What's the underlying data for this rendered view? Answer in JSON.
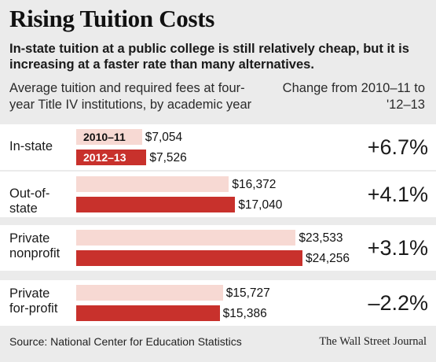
{
  "title": "Rising Tuition Costs",
  "subtitle": "In-state tuition at a public college is still relatively cheap, but it is increasing at a faster rate than many alternatives.",
  "description": "Average tuition and required fees at four-year Title IV institutions, by academic year",
  "change_header": "Change from 2010–11 to '12–13",
  "source": "Source: National Center for Education Statistics",
  "credit": "The Wall Street Journal",
  "colors": {
    "series_2010": "#f7d9d3",
    "series_2012": "#c8312c",
    "background": "#ebebeb",
    "row_background": "#ffffff"
  },
  "chart_data": {
    "type": "bar",
    "orientation": "horizontal",
    "title": "Rising Tuition Costs",
    "categories": [
      "In-state",
      "Out-of-state",
      "Private nonprofit",
      "Private for-profit"
    ],
    "series": [
      {
        "name": "2010–11",
        "values": [
          7054,
          16372,
          23533,
          15727
        ],
        "labels": [
          "$7,054",
          "$16,372",
          "$23,533",
          "$15,727"
        ]
      },
      {
        "name": "2012–13",
        "values": [
          7526,
          17040,
          24256,
          15386
        ],
        "labels": [
          "$7,526",
          "$17,040",
          "$24,256",
          "$15,386"
        ]
      }
    ],
    "changes": [
      "+6.7%",
      "+4.1%",
      "+3.1%",
      "–2.2%"
    ],
    "legend_placement": "inside first bars",
    "grid": false,
    "xlim": [
      0,
      26000
    ]
  }
}
